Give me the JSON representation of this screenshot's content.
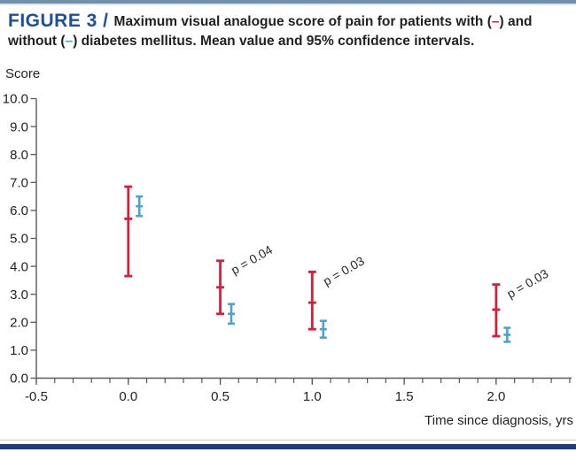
{
  "page": {
    "accent_bar_color": "#7090ad",
    "footer_bar_color": "#1c3d7a"
  },
  "header": {
    "figure_label": "FIGURE 3 /",
    "figure_label_color": "#1d4f9b",
    "title_segments": [
      {
        "text": "Maximum visual analogue score of pain for patients with (",
        "color": "#231f20"
      },
      {
        "text": "–",
        "color": "#d5203c"
      },
      {
        "text": ") and without (",
        "color": "#231f20"
      },
      {
        "text": "–",
        "color": "#4fa3c6"
      },
      {
        "text": ") diabetes mellitus. Mean value and 95% confidence intervals.",
        "color": "#231f20"
      }
    ]
  },
  "chart_data": {
    "type": "errorbar",
    "ylabel": "Score",
    "xlabel": "Time since diagnosis, yrs",
    "xlim": [
      -0.5,
      2.41
    ],
    "ylim": [
      0,
      10
    ],
    "axis_color": "#595959",
    "tick_label_color": "#231f20",
    "y_ticks": [
      {
        "v": 10,
        "label": "10.0"
      },
      {
        "v": 9,
        "label": "9.0"
      },
      {
        "v": 8,
        "label": "8.0"
      },
      {
        "v": 7,
        "label": "7.0"
      },
      {
        "v": 6,
        "label": "6.0"
      },
      {
        "v": 5,
        "label": "5.0"
      },
      {
        "v": 4,
        "label": "4.0"
      },
      {
        "v": 3,
        "label": "3.0"
      },
      {
        "v": 2,
        "label": "2.0"
      },
      {
        "v": 1,
        "label": "1.0"
      },
      {
        "v": 0,
        "label": "0.0"
      }
    ],
    "x_major_ticks": [
      {
        "v": -0.5,
        "label": "-0.5"
      },
      {
        "v": 0.0,
        "label": "0.0"
      },
      {
        "v": 0.5,
        "label": "0.5"
      },
      {
        "v": 1.0,
        "label": "1.0"
      },
      {
        "v": 1.5,
        "label": "1.5"
      },
      {
        "v": 2.0,
        "label": "2.0"
      }
    ],
    "x_minor_step": 0.1,
    "x_minor_max": 2.4,
    "series": [
      {
        "id": "with-diabetes",
        "name": "With diabetes mellitus",
        "color": "#d5203c",
        "stroke_w": 2.8,
        "cap_w": 9,
        "points": [
          {
            "x": 0.0,
            "mean": 5.7,
            "lo": 3.65,
            "hi": 6.85
          },
          {
            "x": 0.5,
            "mean": 3.25,
            "lo": 2.3,
            "hi": 4.2
          },
          {
            "x": 1.0,
            "mean": 2.7,
            "lo": 1.75,
            "hi": 3.8
          },
          {
            "x": 2.0,
            "mean": 2.45,
            "lo": 1.5,
            "hi": 3.35
          }
        ]
      },
      {
        "id": "without-diabetes",
        "name": "Without diabetes mellitus",
        "color": "#4fa3c6",
        "stroke_w": 2.6,
        "cap_w": 8,
        "points": [
          {
            "x": 0.06,
            "mean": 6.15,
            "lo": 5.8,
            "hi": 6.5
          },
          {
            "x": 0.56,
            "mean": 2.3,
            "lo": 1.95,
            "hi": 2.65
          },
          {
            "x": 1.06,
            "mean": 1.75,
            "lo": 1.45,
            "hi": 2.05
          },
          {
            "x": 2.06,
            "mean": 1.55,
            "lo": 1.3,
            "hi": 1.8
          }
        ]
      }
    ],
    "annotations": [
      {
        "text": "p = 0.04",
        "x": 0.5,
        "rotation_deg": -30
      },
      {
        "text": "p = 0.03",
        "x": 1.0,
        "rotation_deg": -30
      },
      {
        "text": "p = 0.03",
        "x": 2.0,
        "rotation_deg": -30
      }
    ]
  }
}
